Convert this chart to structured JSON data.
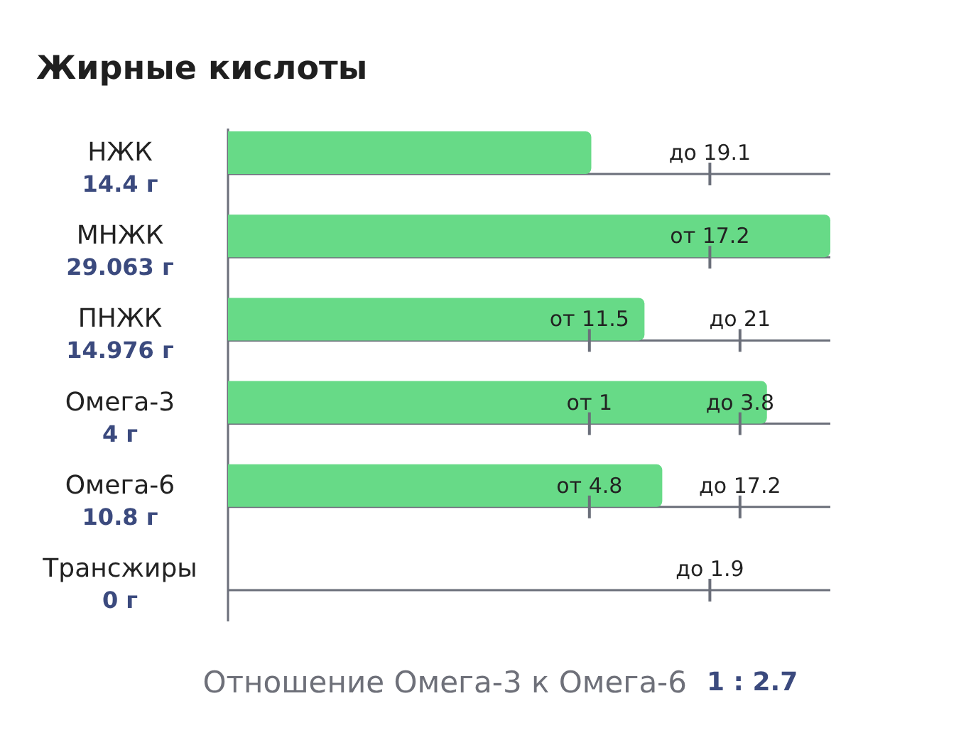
{
  "chart_data": {
    "type": "other",
    "title": "Жирные кислоты",
    "categories": [
      "НЖК",
      "МНЖК",
      "ПНЖК",
      "Омега-3",
      "Омега-6",
      "Трансжиры"
    ],
    "series": [
      {
        "color": "#67da87",
        "values": [
          14.4,
          29.063,
          14.976,
          4,
          10.8,
          0
        ],
        "value_labels": [
          "14.4 г",
          "29.063 г",
          "14.976 г",
          "4 г",
          "10.8 г",
          "0 г"
        ]
      },
      {
        "values": [
          null,
          17.2,
          11.5,
          1,
          4.8,
          null
        ],
        "value_labels": [
          null,
          "от 17.2",
          "от 11.5",
          "от 1",
          "от 4.8",
          null
        ]
      },
      {
        "values": [
          19.1,
          null,
          21,
          3.8,
          17.2,
          1.9
        ],
        "value_labels": [
          "до 19.1",
          null,
          "до 21",
          "до 3.8",
          "до 17.2",
          "до 1.9"
        ]
      }
    ],
    "annotations": [
      "Отношение Омега-3 к Омега-6",
      "1 : 2.7"
    ]
  }
}
